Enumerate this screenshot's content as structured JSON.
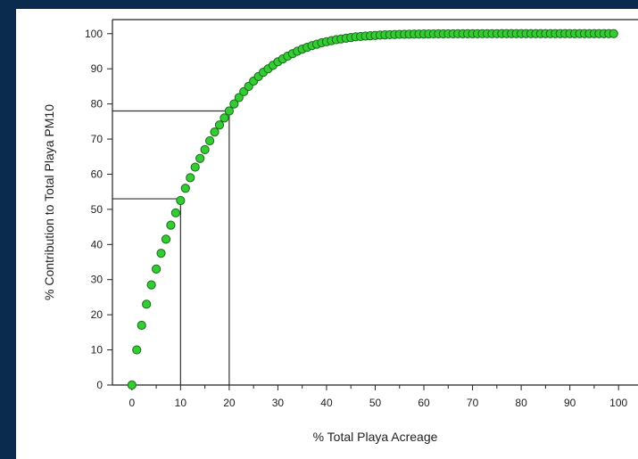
{
  "chart_data": {
    "type": "scatter",
    "title": "",
    "xlabel": "% Total Playa Acreage",
    "ylabel": "% Contribution to Total Playa PM10",
    "xlim": [
      -4,
      104
    ],
    "ylim": [
      0,
      104
    ],
    "xticks": [
      0,
      10,
      20,
      30,
      40,
      50,
      60,
      70,
      80,
      90,
      100
    ],
    "yticks": [
      0,
      10,
      20,
      30,
      40,
      50,
      60,
      70,
      80,
      90,
      100
    ],
    "grid": false,
    "legend": "none",
    "marker_color": "#33cc33",
    "marker_edge": "#1a6b1a",
    "reference_lines": [
      {
        "x": 10,
        "y": 53
      },
      {
        "x": 20,
        "y": 78
      }
    ],
    "series": [
      {
        "x": [
          0,
          1,
          2,
          3,
          4,
          5,
          6,
          7,
          8,
          9,
          10,
          11,
          12,
          13,
          14,
          15,
          16,
          17,
          18,
          19,
          20,
          21,
          22,
          23,
          24,
          25,
          26,
          27,
          28,
          29,
          30,
          31,
          32,
          33,
          34,
          35,
          36,
          37,
          38,
          39,
          40,
          41,
          42,
          43,
          44,
          45,
          46,
          47,
          48,
          49,
          50,
          51,
          52,
          53,
          54,
          55,
          56,
          57,
          58,
          59,
          60,
          61,
          62,
          63,
          64,
          65,
          66,
          67,
          68,
          69,
          70,
          71,
          72,
          73,
          74,
          75,
          76,
          77,
          78,
          79,
          80,
          81,
          82,
          83,
          84,
          85,
          86,
          87,
          88,
          89,
          90,
          91,
          92,
          93,
          94,
          95,
          96,
          97,
          98,
          99
        ],
        "y": [
          0,
          10,
          17,
          23,
          28.5,
          33,
          37.5,
          41.5,
          45.5,
          49,
          52.5,
          56,
          59,
          62,
          64.5,
          67,
          69.5,
          72,
          74,
          76,
          78,
          80,
          81.8,
          83.5,
          85,
          86.5,
          87.8,
          89,
          90,
          91,
          92,
          92.8,
          93.6,
          94.3,
          95,
          95.6,
          96.1,
          96.6,
          97,
          97.4,
          97.7,
          98,
          98.3,
          98.5,
          98.7,
          98.9,
          99.1,
          99.2,
          99.3,
          99.4,
          99.5,
          99.6,
          99.65,
          99.7,
          99.75,
          99.8,
          99.82,
          99.85,
          99.87,
          99.9,
          99.91,
          99.92,
          99.93,
          99.94,
          99.95,
          99.96,
          99.96,
          99.97,
          99.97,
          99.98,
          99.98,
          99.98,
          99.99,
          99.99,
          99.99,
          99.99,
          100,
          100,
          100,
          100,
          100,
          100,
          100,
          100,
          100,
          100,
          100,
          100,
          100,
          100,
          100,
          100,
          100,
          100,
          100,
          100,
          100,
          100,
          100,
          100
        ]
      }
    ]
  }
}
